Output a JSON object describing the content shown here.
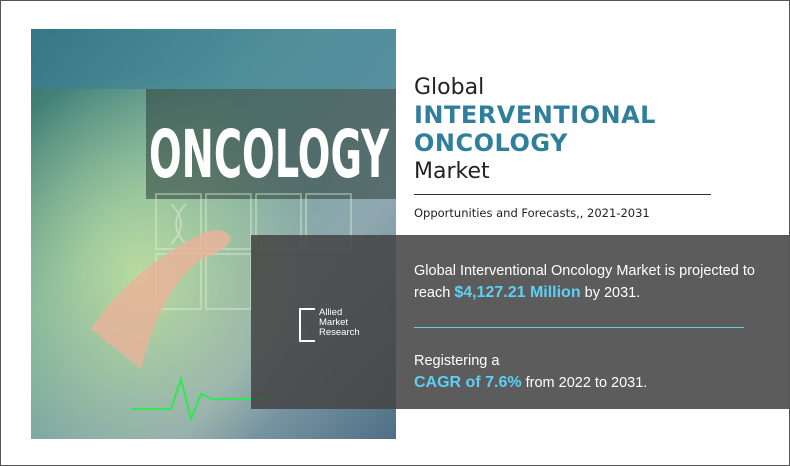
{
  "header": {
    "line1": "Global",
    "line2": "INTERVENTIONAL",
    "line3": "ONCOLOGY",
    "line4": "Market",
    "subtitle": "Opportunities and Forecasts,, 2021-2031"
  },
  "image": {
    "word": "ONCOLOGY",
    "logo": [
      "Allied",
      "Market",
      "Research"
    ]
  },
  "stats": [
    {
      "prefix": "Global Interventional Oncology Market is projected to reach",
      "highlight": "$4,127.21 Million",
      "suffix": "by 2031."
    },
    {
      "prefix": "Registering a",
      "highlight": "CAGR of 7.6%",
      "suffix": "from 2022 to 2031."
    }
  ]
}
